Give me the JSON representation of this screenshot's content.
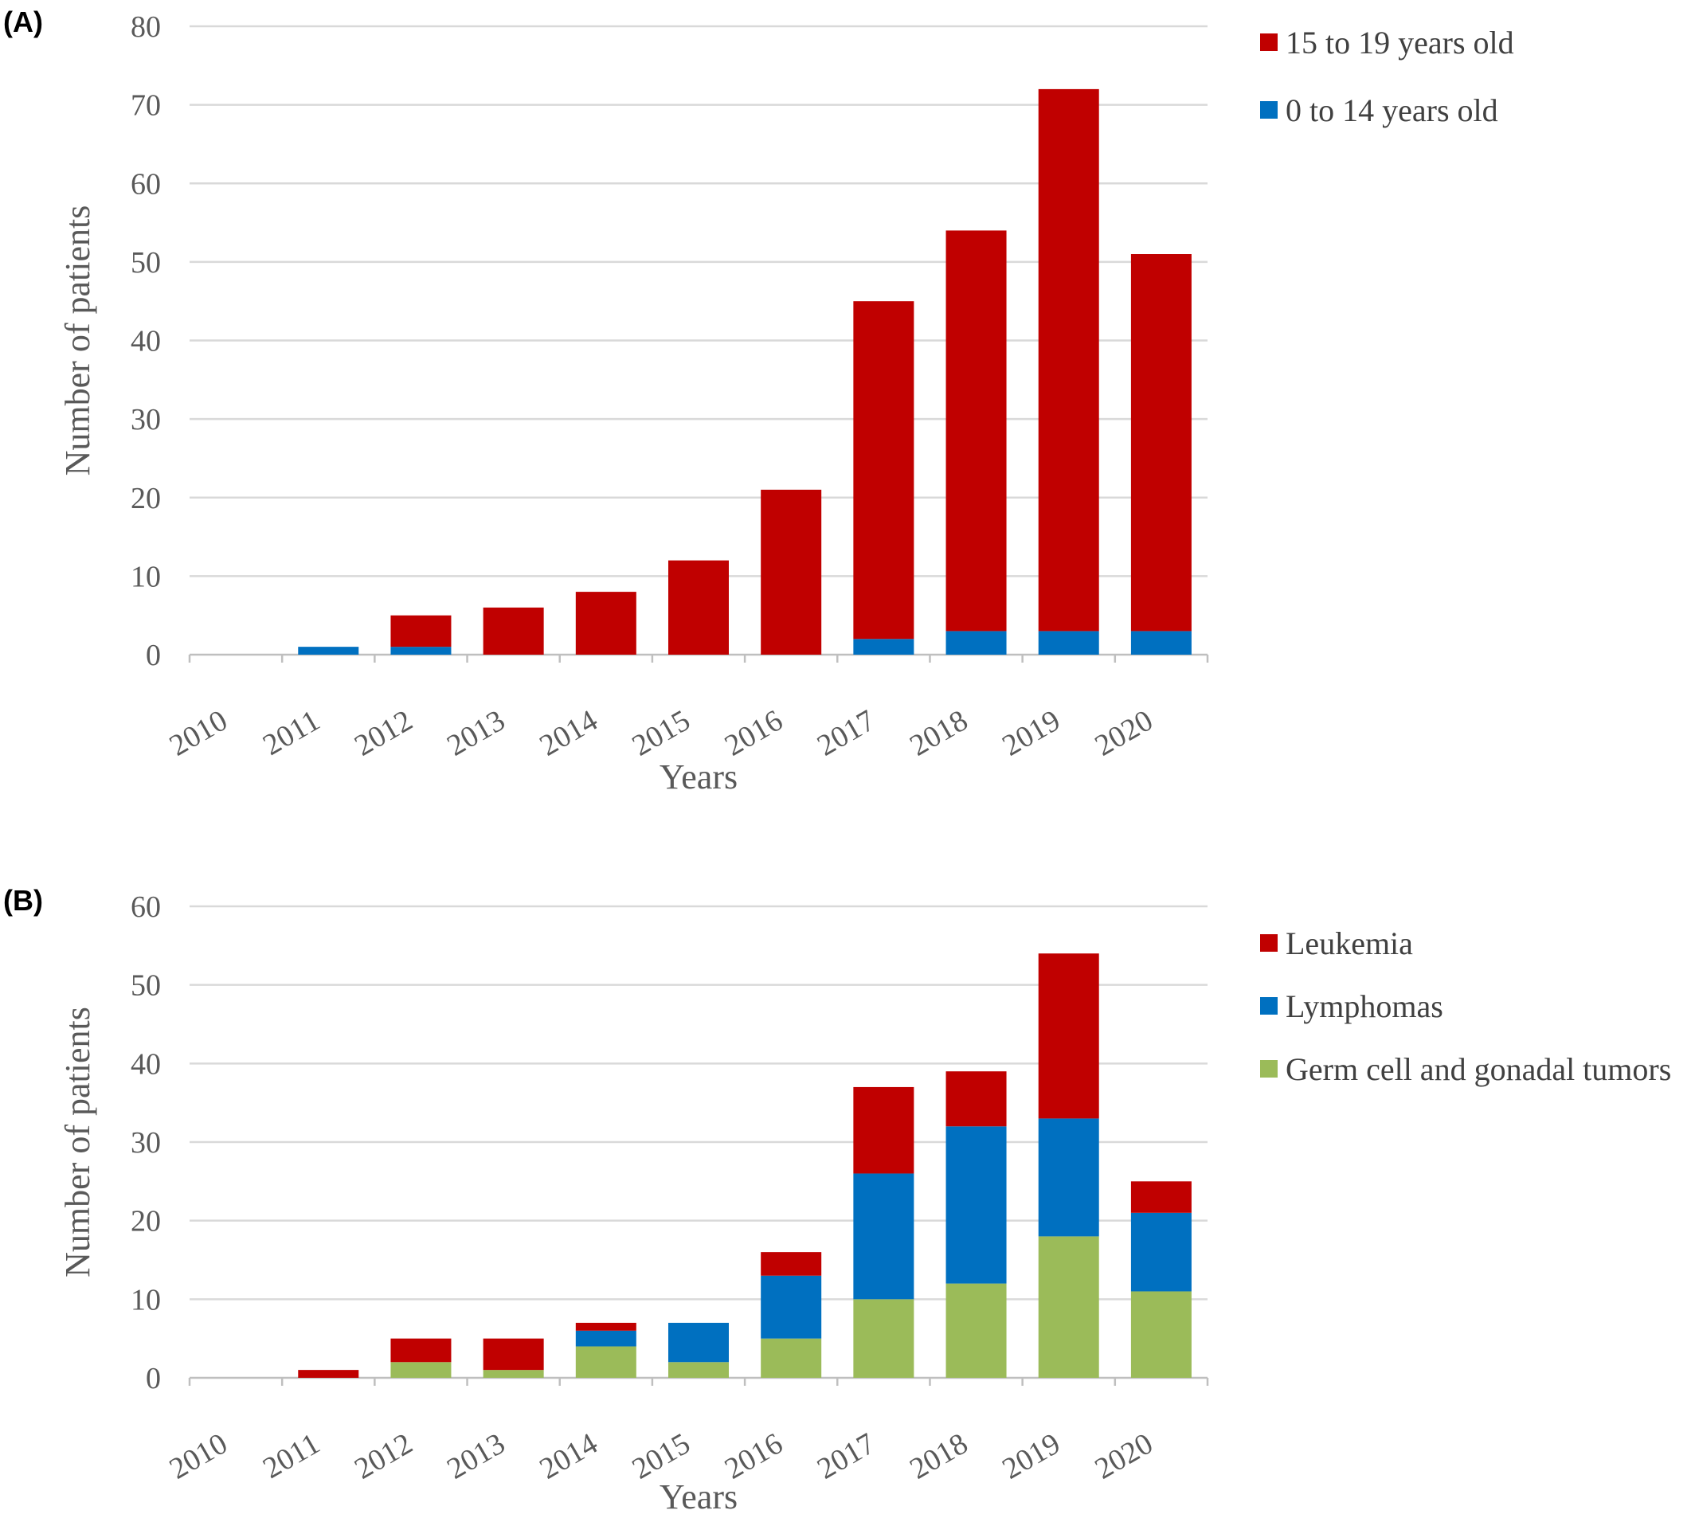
{
  "chart_data": [
    {
      "type": "bar",
      "stacked": true,
      "panel_label": "(A)",
      "xlabel": "Years",
      "ylabel": "Number of patients",
      "ylim": [
        0,
        80
      ],
      "yticks": [
        0,
        10,
        20,
        30,
        40,
        50,
        60,
        70,
        80
      ],
      "grid": true,
      "legend_position": "right",
      "categories": [
        "2010",
        "2011",
        "2012",
        "2013",
        "2014",
        "2015",
        "2016",
        "2017",
        "2018",
        "2019",
        "2020"
      ],
      "series": [
        {
          "name": "0 to 14 years old",
          "color": "#0070c0",
          "values": [
            0,
            1,
            1,
            0,
            0,
            0,
            0,
            2,
            3,
            3,
            3
          ]
        },
        {
          "name": "15 to 19 years old",
          "color": "#c00000",
          "values": [
            0,
            0,
            4,
            6,
            8,
            12,
            21,
            43,
            51,
            69,
            48
          ]
        }
      ],
      "legend_order": [
        1,
        0
      ]
    },
    {
      "type": "bar",
      "stacked": true,
      "panel_label": "(B)",
      "xlabel": "Years",
      "ylabel": "Number of patients",
      "ylim": [
        0,
        60
      ],
      "yticks": [
        0,
        10,
        20,
        30,
        40,
        50,
        60
      ],
      "grid": true,
      "legend_position": "right",
      "categories": [
        "2010",
        "2011",
        "2012",
        "2013",
        "2014",
        "2015",
        "2016",
        "2017",
        "2018",
        "2019",
        "2020"
      ],
      "series": [
        {
          "name": "Germ cell and gonadal tumors",
          "color": "#9bbb59",
          "values": [
            0,
            0,
            2,
            1,
            4,
            2,
            5,
            10,
            12,
            18,
            11
          ]
        },
        {
          "name": "Lymphomas",
          "color": "#0070c0",
          "values": [
            0,
            0,
            0,
            0,
            2,
            5,
            8,
            16,
            20,
            15,
            10
          ]
        },
        {
          "name": "Leukemia",
          "color": "#c00000",
          "values": [
            0,
            1,
            3,
            4,
            1,
            0,
            3,
            11,
            7,
            21,
            4
          ]
        }
      ],
      "legend_order": [
        2,
        1,
        0
      ]
    }
  ]
}
